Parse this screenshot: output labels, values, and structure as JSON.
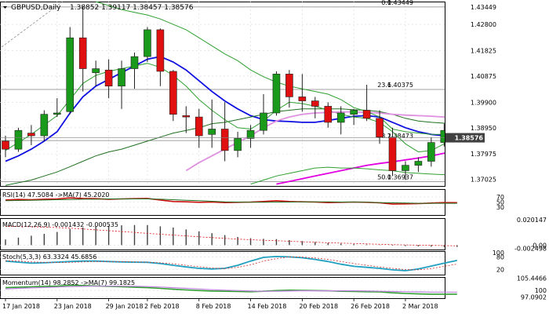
{
  "colors": {
    "background": "#ffffff",
    "bull": "#1a9a1a",
    "bear": "#e01010",
    "ma_blue": "#1010e0",
    "ma_green_dark": "#207020",
    "ma_green_light": "#30a030",
    "ma_magenta": "#e000e0",
    "ma_pink": "#e090e0",
    "price_marker_bg": "#404040",
    "grid": "#d8d8d8",
    "axis_text": "#000000",
    "fib_line": "#808080",
    "rsi_red": "#cc1010",
    "rsi_green": "#207020",
    "stoch_blue": "#20a0c0",
    "stoch_red": "#d03030",
    "momentum_green": "#30a030",
    "momentum_purple": "#c080e0",
    "histogram": "#404040"
  },
  "chart_data": [
    {
      "type": "candlestick",
      "panel": "price",
      "title": "GBPUSD,Daily",
      "ohlc_text": "1.38852 1.39117 1.38457 1.38576",
      "x_labels": [
        "17 Jan 2018",
        "23 Jan 2018",
        "29 Jan 2018",
        "2 Feb 2018",
        "8 Feb 2018",
        "14 Feb 2018",
        "20 Feb 2018",
        "26 Feb 2018",
        "2 Mar 2018"
      ],
      "x_label_index": [
        0,
        4,
        8,
        11,
        15,
        19,
        23,
        27,
        31
      ],
      "y_ticks": [
        "1.43449",
        "1.42800",
        "1.41825",
        "1.40875",
        "1.39900",
        "1.38950",
        "1.37975",
        "1.37025"
      ],
      "y_tick_values": [
        1.43449,
        1.428,
        1.41825,
        1.40875,
        1.399,
        1.3895,
        1.37975,
        1.37025
      ],
      "ylim": [
        1.3678,
        1.4365
      ],
      "current_price": "1.38576",
      "current_price_value": 1.38576,
      "fib_levels": [
        {
          "ratio": "0.0",
          "price": "1.43449",
          "value": 1.43449
        },
        {
          "ratio": "23.6",
          "price": "1.40375",
          "value": 1.40375
        },
        {
          "ratio": "38.2",
          "price": "1.38473",
          "value": 1.38473
        },
        {
          "ratio": "50.0",
          "price": "1.36937",
          "value": 1.36937
        }
      ],
      "candles": [
        {
          "o": 1.3845,
          "h": 1.3865,
          "l": 1.3785,
          "c": 1.3815
        },
        {
          "o": 1.3815,
          "h": 1.3895,
          "l": 1.3805,
          "c": 1.3885
        },
        {
          "o": 1.3875,
          "h": 1.3905,
          "l": 1.383,
          "c": 1.3865
        },
        {
          "o": 1.3865,
          "h": 1.396,
          "l": 1.3845,
          "c": 1.3945
        },
        {
          "o": 1.3945,
          "h": 1.4005,
          "l": 1.3935,
          "c": 1.395
        },
        {
          "o": 1.3955,
          "h": 1.427,
          "l": 1.3945,
          "c": 1.423
        },
        {
          "o": 1.423,
          "h": 1.4345,
          "l": 1.403,
          "c": 1.4115
        },
        {
          "o": 1.41,
          "h": 1.4145,
          "l": 1.405,
          "c": 1.4115
        },
        {
          "o": 1.411,
          "h": 1.415,
          "l": 1.4005,
          "c": 1.405
        },
        {
          "o": 1.405,
          "h": 1.4145,
          "l": 1.3965,
          "c": 1.4115
        },
        {
          "o": 1.4115,
          "h": 1.4175,
          "l": 1.404,
          "c": 1.416
        },
        {
          "o": 1.416,
          "h": 1.427,
          "l": 1.414,
          "c": 1.426
        },
        {
          "o": 1.426,
          "h": 1.4265,
          "l": 1.405,
          "c": 1.4105
        },
        {
          "o": 1.4105,
          "h": 1.411,
          "l": 1.392,
          "c": 1.3945
        },
        {
          "o": 1.394,
          "h": 1.3975,
          "l": 1.3875,
          "c": 1.3935
        },
        {
          "o": 1.3935,
          "h": 1.3965,
          "l": 1.382,
          "c": 1.3865
        },
        {
          "o": 1.387,
          "h": 1.4,
          "l": 1.382,
          "c": 1.389
        },
        {
          "o": 1.389,
          "h": 1.399,
          "l": 1.377,
          "c": 1.381
        },
        {
          "o": 1.381,
          "h": 1.388,
          "l": 1.3785,
          "c": 1.3855
        },
        {
          "o": 1.3855,
          "h": 1.3905,
          "l": 1.382,
          "c": 1.3885
        },
        {
          "o": 1.3885,
          "h": 1.402,
          "l": 1.387,
          "c": 1.395
        },
        {
          "o": 1.395,
          "h": 1.4105,
          "l": 1.394,
          "c": 1.4095
        },
        {
          "o": 1.4095,
          "h": 1.411,
          "l": 1.397,
          "c": 1.401
        },
        {
          "o": 1.401,
          "h": 1.4095,
          "l": 1.3955,
          "c": 1.3995
        },
        {
          "o": 1.3995,
          "h": 1.401,
          "l": 1.393,
          "c": 1.3975
        },
        {
          "o": 1.3975,
          "h": 1.399,
          "l": 1.3895,
          "c": 1.3915
        },
        {
          "o": 1.3915,
          "h": 1.3975,
          "l": 1.387,
          "c": 1.395
        },
        {
          "o": 1.3945,
          "h": 1.3965,
          "l": 1.3905,
          "c": 1.396
        },
        {
          "o": 1.396,
          "h": 1.4055,
          "l": 1.392,
          "c": 1.393
        },
        {
          "o": 1.393,
          "h": 1.396,
          "l": 1.3835,
          "c": 1.386
        },
        {
          "o": 1.386,
          "h": 1.3895,
          "l": 1.3715,
          "c": 1.3735
        },
        {
          "o": 1.3735,
          "h": 1.377,
          "l": 1.37,
          "c": 1.3755
        },
        {
          "o": 1.3755,
          "h": 1.3785,
          "l": 1.373,
          "c": 1.377
        },
        {
          "o": 1.377,
          "h": 1.386,
          "l": 1.375,
          "c": 1.384
        },
        {
          "o": 1.384,
          "h": 1.391,
          "l": 1.3825,
          "c": 1.3885
        },
        {
          "o": 1.3885,
          "h": 1.3912,
          "l": 1.3846,
          "c": 1.3858
        }
      ],
      "overlay_series": [
        {
          "color": "ma_blue",
          "values": [
            1.377,
            1.379,
            1.3815,
            1.3845,
            1.388,
            1.395,
            1.401,
            1.405,
            1.4075,
            1.41,
            1.4125,
            1.415,
            1.416,
            1.414,
            1.411,
            1.407,
            1.403,
            1.3995,
            1.3965,
            1.394,
            1.3925,
            1.392,
            1.3918,
            1.3915,
            1.3915,
            1.3922,
            1.393,
            1.3938,
            1.394,
            1.3935,
            1.3915,
            1.3895,
            1.388,
            1.387,
            1.3865,
            1.3865
          ]
        },
        {
          "color": "ma_green_dark",
          "values": [
            1.368,
            1.369,
            1.37,
            1.3715,
            1.373,
            1.375,
            1.377,
            1.379,
            1.3805,
            1.3815,
            1.383,
            1.3845,
            1.386,
            1.3875,
            1.3885,
            1.3895,
            1.391,
            1.3915,
            1.3925,
            1.3935,
            1.3945,
            1.3955,
            1.396,
            1.3965,
            1.3965,
            1.3965,
            1.3965,
            1.3962,
            1.396,
            1.3955,
            1.3945,
            1.393,
            1.392,
            1.3915,
            1.3912,
            1.391
          ]
        },
        {
          "color": "ma_green_light",
          "values": [
            1.381,
            1.384,
            1.387,
            1.3905,
            1.394,
            1.4,
            1.406,
            1.409,
            1.4105,
            1.4115,
            1.4125,
            1.4135,
            1.412,
            1.409,
            1.405,
            1.4,
            1.396,
            1.3925,
            1.3895,
            1.389,
            1.392,
            1.396,
            1.399,
            1.3985,
            1.3975,
            1.396,
            1.3945,
            1.3935,
            1.393,
            1.3915,
            1.388,
            1.3835,
            1.3805,
            1.381,
            1.3835,
            1.385
          ]
        },
        {
          "color": "ma_pink",
          "values": [
            null,
            null,
            null,
            null,
            null,
            null,
            null,
            null,
            null,
            null,
            null,
            null,
            null,
            null,
            1.3735,
            1.3765,
            1.379,
            1.3815,
            1.384,
            1.3865,
            1.3895,
            1.392,
            1.3935,
            1.3945,
            1.395,
            1.3952,
            1.3954,
            1.3954,
            1.3952,
            1.395,
            1.3945,
            1.3942,
            1.394,
            1.3938,
            1.3935,
            1.393
          ]
        },
        {
          "color": "ma_magenta",
          "values": [
            null,
            null,
            null,
            null,
            null,
            null,
            null,
            null,
            null,
            null,
            null,
            null,
            null,
            null,
            null,
            null,
            null,
            null,
            null,
            null,
            null,
            1.3685,
            1.3695,
            1.3705,
            1.3715,
            1.3725,
            1.3735,
            1.3745,
            1.3755,
            1.3762,
            1.3768,
            1.3775,
            1.3782,
            1.379,
            1.38,
            1.3808
          ]
        },
        {
          "color": "ma_green_light",
          "values": [
            null,
            null,
            null,
            null,
            null,
            null,
            null,
            null,
            null,
            null,
            null,
            null,
            null,
            null,
            null,
            null,
            null,
            null,
            null,
            1.3685,
            1.37,
            1.3715,
            1.3725,
            1.3735,
            1.3745,
            1.3748,
            1.3745,
            1.3745,
            1.3742,
            1.3738,
            1.3735,
            1.3728,
            1.3725,
            1.3722,
            1.372,
            1.3718
          ]
        },
        {
          "color": "ma_green_light",
          "values": [
            null,
            null,
            null,
            null,
            null,
            null,
            null,
            1.4365,
            1.435,
            1.4335,
            1.4325,
            1.4315,
            1.43,
            1.428,
            1.426,
            1.423,
            1.42,
            1.417,
            1.4145,
            1.411,
            1.4085,
            1.4065,
            1.405,
            1.404,
            1.403,
            1.402,
            1.4,
            1.397,
            1.3955,
            1.3935,
            1.389,
            1.388,
            1.3875,
            1.387,
            1.387,
            1.3868
          ]
        }
      ]
    },
    {
      "type": "line",
      "panel": "rsi",
      "label": "RSI(14) 47.5084 ->MA(7) 45.2020",
      "y_ticks": [
        "70",
        "50",
        "30"
      ],
      "y_tick_values": [
        70,
        50,
        30
      ],
      "ylim": [
        0,
        100
      ],
      "series": [
        {
          "name": "RSI(14)",
          "values": [
            58,
            60,
            59,
            61,
            62,
            66,
            64,
            63,
            61,
            62,
            63,
            64,
            58,
            52,
            51,
            49,
            50,
            48,
            49,
            50,
            52,
            55,
            52,
            51,
            50,
            48,
            49,
            50,
            49,
            47,
            42,
            43,
            44,
            46,
            48,
            47.5
          ]
        },
        {
          "name": "MA(7)",
          "values": [
            55,
            56,
            57,
            58,
            59,
            60,
            61,
            61,
            62,
            62,
            62,
            62,
            61,
            59,
            57,
            55,
            53,
            51,
            50,
            49,
            49,
            50,
            50,
            51,
            51,
            51,
            50,
            50,
            49,
            48,
            47,
            46,
            45,
            45,
            45,
            45.2
          ]
        }
      ]
    },
    {
      "type": "bar",
      "panel": "macd",
      "label": "MACD(12,26,9) -0.001432 -0.000535",
      "y_ticks": [
        "0.020147",
        "0.00",
        "-0.002498"
      ],
      "y_tick_values": [
        0.020147,
        0.0,
        -0.002498
      ],
      "ylim": [
        -0.0035,
        0.0215
      ],
      "values": [
        0.0045,
        0.006,
        0.0075,
        0.009,
        0.0105,
        0.013,
        0.014,
        0.015,
        0.0155,
        0.0158,
        0.016,
        0.016,
        0.015,
        0.014,
        0.0125,
        0.011,
        0.0095,
        0.008,
        0.0065,
        0.0055,
        0.005,
        0.0048,
        0.004,
        0.0032,
        0.0025,
        0.0018,
        0.0012,
        0.0008,
        0.0005,
        0.0002,
        -0.0004,
        -0.0008,
        -0.001,
        -0.0012,
        -0.0014,
        -0.00143
      ],
      "signal_values": [
        0.015,
        0.0149,
        0.0147,
        0.0144,
        0.014,
        0.0135,
        0.0129,
        0.0122,
        0.0115,
        0.0108,
        0.0101,
        0.0094,
        0.0087,
        0.008,
        0.0073,
        0.0066,
        0.006,
        0.0054,
        0.0048,
        0.0043,
        0.0039,
        0.0035,
        0.0031,
        0.0027,
        0.0023,
        0.0019,
        0.0016,
        0.0013,
        0.001,
        0.0007,
        0.0004,
        0.0002,
        0.0,
        -0.0002,
        -0.0004,
        -0.000535
      ]
    },
    {
      "type": "line",
      "panel": "stoch",
      "label": "Stoch(5,3,3) 63.3324 45.6856",
      "y_ticks": [
        "100",
        "80",
        "20"
      ],
      "y_tick_values": [
        100,
        80,
        20
      ],
      "ylim": [
        -5,
        108
      ],
      "series": [
        {
          "name": "%K",
          "values": [
            60,
            55,
            50,
            52,
            55,
            58,
            60,
            60,
            58,
            56,
            55,
            54,
            48,
            40,
            32,
            25,
            22,
            25,
            40,
            60,
            78,
            82,
            80,
            76,
            68,
            58,
            45,
            35,
            30,
            25,
            18,
            14,
            22,
            36,
            50,
            63.3
          ]
        },
        {
          "name": "%D",
          "values": [
            62,
            60,
            56,
            54,
            53,
            54,
            56,
            58,
            58,
            57,
            56,
            55,
            52,
            47,
            40,
            33,
            27,
            24,
            30,
            42,
            60,
            72,
            80,
            79,
            75,
            68,
            58,
            48,
            40,
            32,
            25,
            19,
            18,
            24,
            35,
            45.7
          ]
        }
      ]
    },
    {
      "type": "line",
      "panel": "momentum",
      "label": "Momentum(14) 98.2852 ->MA(7) 99.1825",
      "y_ticks": [
        "105.4466",
        "100",
        "97.0902"
      ],
      "y_tick_values": [
        105.4466,
        100,
        97.0902
      ],
      "ylim": [
        96.5,
        106
      ],
      "series": [
        {
          "name": "Momentum(14)",
          "values": [
            101.2,
            101.4,
            101.6,
            101.8,
            101.9,
            102.3,
            102.2,
            102.0,
            101.8,
            101.6,
            101.4,
            101.2,
            100.9,
            100.5,
            100.2,
            99.9,
            99.7,
            99.6,
            99.5,
            99.4,
            99.6,
            99.9,
            100.1,
            100.0,
            99.9,
            99.8,
            99.6,
            99.5,
            99.4,
            99.3,
            98.9,
            98.6,
            98.4,
            98.3,
            98.3,
            98.3
          ]
        },
        {
          "name": "MA(7)",
          "values": [
            100.7,
            100.9,
            101.1,
            101.3,
            101.5,
            101.7,
            101.8,
            101.9,
            101.9,
            101.9,
            101.8,
            101.7,
            101.5,
            101.2,
            100.9,
            100.6,
            100.3,
            100.1,
            99.9,
            99.7,
            99.6,
            99.6,
            99.7,
            99.8,
            99.8,
            99.8,
            99.8,
            99.8,
            99.7,
            99.6,
            99.5,
            99.4,
            99.3,
            99.2,
            99.2,
            99.2
          ]
        }
      ]
    }
  ]
}
